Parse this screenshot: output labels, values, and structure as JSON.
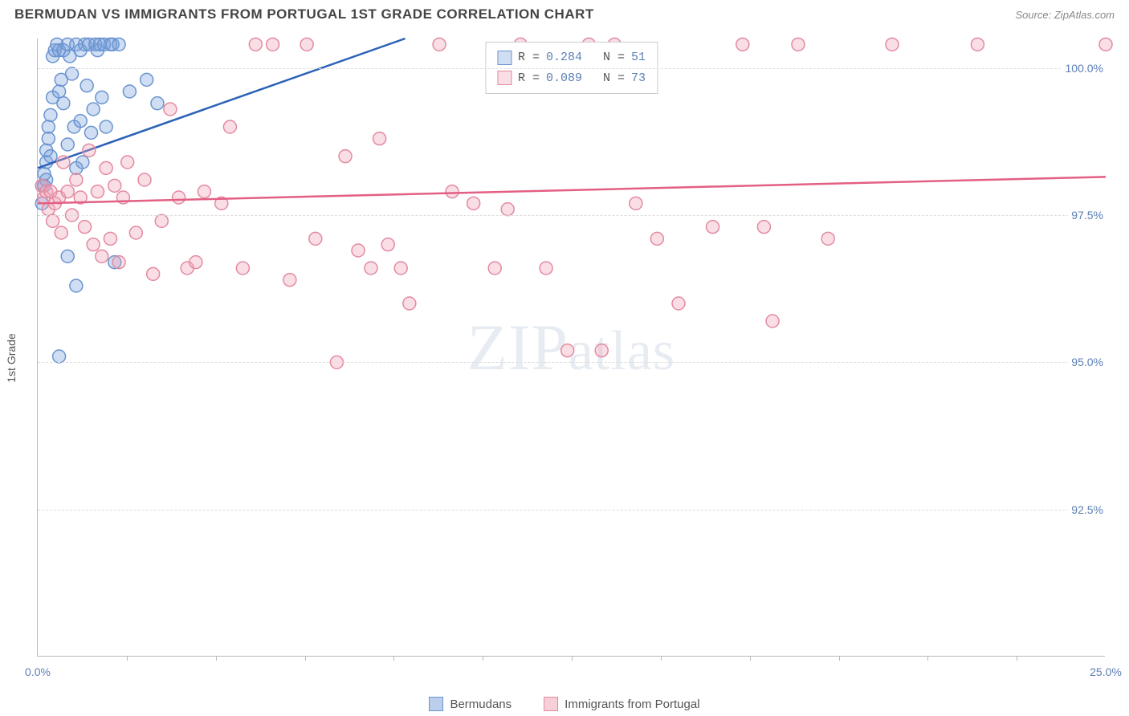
{
  "header": {
    "title": "BERMUDAN VS IMMIGRANTS FROM PORTUGAL 1ST GRADE CORRELATION CHART",
    "source": "Source: ZipAtlas.com"
  },
  "chart": {
    "type": "scatter",
    "background_color": "#ffffff",
    "grid_color": "#dddddd",
    "axis_color": "#bbbbbb",
    "label_color": "#5b7fb5",
    "ylabel": "1st Grade",
    "ylabel_fontsize": 14,
    "xlim": [
      0.0,
      25.0
    ],
    "ylim": [
      90.0,
      100.5
    ],
    "x_ticks": [
      0.0,
      25.0
    ],
    "x_tick_labels": [
      "0.0%",
      "25.0%"
    ],
    "x_minor_ticks": [
      2.08,
      4.17,
      6.25,
      8.33,
      10.42,
      12.5,
      14.58,
      16.67,
      18.75,
      20.83,
      22.92
    ],
    "y_ticks": [
      92.5,
      95.0,
      97.5,
      100.0
    ],
    "y_tick_labels": [
      "92.5%",
      "95.0%",
      "97.5%",
      "100.0%"
    ],
    "marker_radius": 8,
    "marker_stroke_width": 1.5,
    "line_width": 2.5,
    "series": [
      {
        "name": "Bermudans",
        "marker_fill": "rgba(120,160,220,0.35)",
        "marker_stroke": "#6a94cf",
        "line_color": "#2b62b7",
        "R": "0.284",
        "N": "51",
        "trend": {
          "x1": 0.0,
          "y1": 98.3,
          "x2": 8.6,
          "y2": 100.5
        },
        "points": [
          [
            0.1,
            97.7
          ],
          [
            0.1,
            98.0
          ],
          [
            0.15,
            98.2
          ],
          [
            0.15,
            98.0
          ],
          [
            0.2,
            98.1
          ],
          [
            0.2,
            98.4
          ],
          [
            0.2,
            98.6
          ],
          [
            0.25,
            99.0
          ],
          [
            0.25,
            98.8
          ],
          [
            0.3,
            99.2
          ],
          [
            0.3,
            98.5
          ],
          [
            0.35,
            99.5
          ],
          [
            0.35,
            100.2
          ],
          [
            0.4,
            100.3
          ],
          [
            0.45,
            100.4
          ],
          [
            0.5,
            100.3
          ],
          [
            0.5,
            99.6
          ],
          [
            0.55,
            99.8
          ],
          [
            0.6,
            100.3
          ],
          [
            0.6,
            99.4
          ],
          [
            0.7,
            100.4
          ],
          [
            0.7,
            98.7
          ],
          [
            0.75,
            100.2
          ],
          [
            0.8,
            99.9
          ],
          [
            0.85,
            99.0
          ],
          [
            0.9,
            100.4
          ],
          [
            0.9,
            98.3
          ],
          [
            1.0,
            100.3
          ],
          [
            1.0,
            99.1
          ],
          [
            1.05,
            98.4
          ],
          [
            1.1,
            100.4
          ],
          [
            1.15,
            99.7
          ],
          [
            1.2,
            100.4
          ],
          [
            1.25,
            98.9
          ],
          [
            1.3,
            99.3
          ],
          [
            1.35,
            100.4
          ],
          [
            1.4,
            100.3
          ],
          [
            1.45,
            100.4
          ],
          [
            1.5,
            99.5
          ],
          [
            1.55,
            100.4
          ],
          [
            1.6,
            99.0
          ],
          [
            1.7,
            100.4
          ],
          [
            1.75,
            100.4
          ],
          [
            1.8,
            96.7
          ],
          [
            1.9,
            100.4
          ],
          [
            2.15,
            99.6
          ],
          [
            2.55,
            99.8
          ],
          [
            2.8,
            99.4
          ],
          [
            0.5,
            95.1
          ],
          [
            0.7,
            96.8
          ],
          [
            0.9,
            96.3
          ]
        ]
      },
      {
        "name": "Immigrants from Portugal",
        "marker_fill": "rgba(240,160,180,0.35)",
        "marker_stroke": "#e38aa0",
        "line_color": "#e35f83",
        "R": "0.089",
        "N": "73",
        "trend": {
          "x1": 0.0,
          "y1": 97.7,
          "x2": 25.0,
          "y2": 98.15
        },
        "points": [
          [
            0.1,
            98.0
          ],
          [
            0.15,
            97.8
          ],
          [
            0.2,
            97.9
          ],
          [
            0.25,
            97.6
          ],
          [
            0.3,
            97.9
          ],
          [
            0.35,
            97.4
          ],
          [
            0.4,
            97.7
          ],
          [
            0.5,
            97.8
          ],
          [
            0.55,
            97.2
          ],
          [
            0.6,
            98.4
          ],
          [
            0.7,
            97.9
          ],
          [
            0.8,
            97.5
          ],
          [
            0.9,
            98.1
          ],
          [
            1.0,
            97.8
          ],
          [
            1.1,
            97.3
          ],
          [
            1.2,
            98.6
          ],
          [
            1.3,
            97.0
          ],
          [
            1.4,
            97.9
          ],
          [
            1.5,
            96.8
          ],
          [
            1.6,
            98.3
          ],
          [
            1.7,
            97.1
          ],
          [
            1.8,
            98.0
          ],
          [
            1.9,
            96.7
          ],
          [
            2.0,
            97.8
          ],
          [
            2.1,
            98.4
          ],
          [
            2.3,
            97.2
          ],
          [
            2.5,
            98.1
          ],
          [
            2.7,
            96.5
          ],
          [
            2.9,
            97.4
          ],
          [
            3.1,
            99.3
          ],
          [
            3.3,
            97.8
          ],
          [
            3.5,
            96.6
          ],
          [
            3.7,
            96.7
          ],
          [
            3.9,
            97.9
          ],
          [
            4.3,
            97.7
          ],
          [
            4.5,
            99.0
          ],
          [
            4.8,
            96.6
          ],
          [
            5.1,
            100.4
          ],
          [
            5.5,
            100.4
          ],
          [
            5.9,
            96.4
          ],
          [
            6.3,
            100.4
          ],
          [
            6.5,
            97.1
          ],
          [
            7.0,
            95.0
          ],
          [
            7.2,
            98.5
          ],
          [
            7.5,
            96.9
          ],
          [
            7.8,
            96.6
          ],
          [
            8.0,
            98.8
          ],
          [
            8.2,
            97.0
          ],
          [
            8.5,
            96.6
          ],
          [
            8.7,
            96.0
          ],
          [
            9.4,
            100.4
          ],
          [
            9.7,
            97.9
          ],
          [
            10.2,
            97.7
          ],
          [
            10.7,
            96.6
          ],
          [
            11.0,
            97.6
          ],
          [
            11.3,
            100.4
          ],
          [
            11.9,
            96.6
          ],
          [
            12.4,
            95.2
          ],
          [
            12.9,
            100.4
          ],
          [
            13.2,
            95.2
          ],
          [
            13.5,
            100.4
          ],
          [
            14.0,
            97.7
          ],
          [
            14.5,
            97.1
          ],
          [
            15.0,
            96.0
          ],
          [
            15.8,
            97.3
          ],
          [
            16.5,
            100.4
          ],
          [
            17.0,
            97.3
          ],
          [
            17.2,
            95.7
          ],
          [
            17.8,
            100.4
          ],
          [
            18.5,
            97.1
          ],
          [
            20.0,
            100.4
          ],
          [
            22.0,
            100.4
          ],
          [
            25.0,
            100.4
          ]
        ]
      }
    ],
    "legend_bottom": [
      {
        "label": "Bermudans",
        "fill": "rgba(120,160,220,0.5)",
        "stroke": "#6a94cf"
      },
      {
        "label": "Immigrants from Portugal",
        "fill": "rgba(240,160,180,0.5)",
        "stroke": "#e38aa0"
      }
    ],
    "watermark": "ZIPatlas"
  }
}
